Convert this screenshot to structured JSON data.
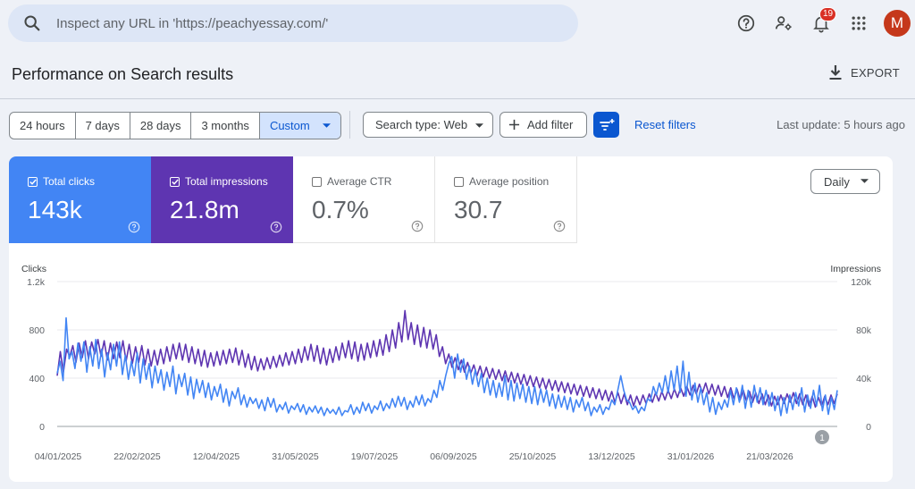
{
  "search": {
    "placeholder": "Inspect any URL in 'https://peachyessay.com/'"
  },
  "header": {
    "notification_count": "19",
    "avatar_letter": "M",
    "icons": [
      "help-icon",
      "manage-users-icon",
      "notifications-icon",
      "apps-grid-icon"
    ]
  },
  "page": {
    "title": "Performance on Search results",
    "export_label": "EXPORT"
  },
  "filters": {
    "date_ranges": [
      "24 hours",
      "7 days",
      "28 days",
      "3 months",
      "Custom"
    ],
    "active_date_range": "Custom",
    "search_type": "Search type: Web",
    "add_filter": "Add filter",
    "reset": "Reset filters",
    "last_update": "Last update: 5 hours ago"
  },
  "metrics": [
    {
      "label": "Total clicks",
      "value": "143k",
      "checked": true,
      "color": "#4285f4"
    },
    {
      "label": "Total impressions",
      "value": "21.8m",
      "checked": true,
      "color": "#5e35b1"
    },
    {
      "label": "Average CTR",
      "value": "0.7%",
      "checked": false
    },
    {
      "label": "Average position",
      "value": "30.7",
      "checked": false
    }
  ],
  "granularity": "Daily",
  "chart_data": {
    "type": "line",
    "left_axis_title": "Clicks",
    "right_axis_title": "Impressions",
    "left_ticks": [
      "0",
      "400",
      "800",
      "1.2k"
    ],
    "right_ticks": [
      "0",
      "40k",
      "80k",
      "120k"
    ],
    "ylim_left": [
      0,
      1200
    ],
    "ylim_right": [
      0,
      120000
    ],
    "x_labels": [
      "04/01/2025",
      "22/02/2025",
      "12/04/2025",
      "31/05/2025",
      "19/07/2025",
      "06/09/2025",
      "25/10/2025",
      "13/12/2025",
      "31/01/2026",
      "21/03/2026"
    ],
    "annotation_marker": "1",
    "grid": true,
    "series": [
      {
        "name": "Clicks",
        "axis": "left",
        "color": "#4285f4",
        "values": [
          440,
          540,
          380,
          900,
          560,
          620,
          480,
          690,
          540,
          700,
          450,
          660,
          500,
          720,
          480,
          640,
          410,
          610,
          470,
          680,
          500,
          700,
          430,
          590,
          390,
          540,
          420,
          610,
          360,
          560,
          390,
          520,
          320,
          500,
          360,
          470,
          300,
          450,
          330,
          500,
          270,
          430,
          330,
          440,
          260,
          410,
          230,
          390,
          280,
          380,
          240,
          360,
          220,
          330,
          250,
          350,
          200,
          310,
          170,
          290,
          230,
          320,
          180,
          260,
          160,
          240,
          190,
          230,
          150,
          220,
          130,
          240,
          160,
          230,
          120,
          180,
          140,
          200,
          110,
          170,
          140,
          190,
          120,
          180,
          100,
          160,
          120,
          170,
          110,
          160,
          90,
          150,
          110,
          140,
          100,
          160,
          90,
          130,
          120,
          180,
          100,
          160,
          110,
          200,
          130,
          190,
          110,
          170,
          140,
          210,
          130,
          190,
          150,
          230,
          160,
          250,
          170,
          240,
          140,
          210,
          160,
          250,
          180,
          260,
          170,
          230,
          200,
          300,
          240,
          380,
          300,
          420,
          520,
          580,
          400,
          600,
          450,
          560,
          390,
          500,
          350,
          470,
          330,
          440,
          280,
          400,
          260,
          380,
          240,
          360,
          250,
          420,
          220,
          380,
          210,
          360,
          230,
          350,
          200,
          330,
          190,
          330,
          180,
          310,
          200,
          300,
          170,
          270,
          150,
          260,
          160,
          250,
          140,
          240,
          120,
          220,
          160,
          240,
          130,
          200,
          90,
          160,
          120,
          180,
          100,
          160,
          140,
          220,
          180,
          300,
          420,
          300,
          220,
          200,
          140,
          170,
          110,
          160,
          130,
          230,
          210,
          330,
          260,
          360,
          280,
          420,
          280,
          460,
          300,
          500,
          280,
          540,
          250,
          450,
          220,
          360,
          200,
          320,
          180,
          280,
          120,
          240,
          100,
          200,
          140,
          220,
          160,
          300,
          180,
          320,
          200,
          340,
          150,
          300,
          160,
          340,
          200,
          320,
          180,
          300,
          170,
          280,
          130,
          250,
          90,
          240,
          110,
          260,
          140,
          280,
          170,
          320,
          120,
          260,
          150,
          300,
          170,
          340,
          130,
          260,
          100,
          240,
          140,
          300
        ]
      },
      {
        "name": "Impressions",
        "axis": "right",
        "color": "#5e35b1",
        "values": [
          42000,
          62000,
          45000,
          64000,
          58000,
          67000,
          53000,
          69000,
          57000,
          71000,
          56000,
          70000,
          60000,
          72000,
          58000,
          71000,
          55000,
          69000,
          56000,
          70000,
          57000,
          71000,
          54000,
          68000,
          52000,
          66000,
          53000,
          67000,
          51000,
          64000,
          50000,
          63000,
          51000,
          64000,
          52000,
          66000,
          54000,
          68000,
          56000,
          69000,
          55000,
          68000,
          53000,
          66000,
          52000,
          64000,
          50000,
          63000,
          49000,
          61000,
          50000,
          62000,
          51000,
          63000,
          52000,
          64000,
          53000,
          65000,
          51000,
          63000,
          49000,
          60000,
          47000,
          58000,
          46000,
          56000,
          47000,
          57000,
          48000,
          58000,
          49000,
          59000,
          50000,
          61000,
          51000,
          62000,
          52000,
          64000,
          53000,
          66000,
          55000,
          68000,
          54000,
          67000,
          52000,
          65000,
          51000,
          64000,
          53000,
          66000,
          55000,
          69000,
          57000,
          71000,
          56000,
          70000,
          54000,
          68000,
          55000,
          69000,
          57000,
          71000,
          58000,
          72000,
          59000,
          76000,
          62000,
          80000,
          65000,
          86000,
          70000,
          96000,
          72000,
          86000,
          68000,
          84000,
          66000,
          82000,
          65000,
          80000,
          64000,
          76000,
          58000,
          66000,
          52000,
          60000,
          49000,
          57000,
          47000,
          55000,
          45000,
          53000,
          44000,
          51000,
          42000,
          50000,
          41000,
          49000,
          40000,
          48000,
          39000,
          47000,
          38000,
          46000,
          37000,
          45000,
          36000,
          44000,
          35000,
          43000,
          34000,
          42000,
          33000,
          41000,
          32000,
          40000,
          31000,
          39000,
          30000,
          38000,
          29000,
          37000,
          28000,
          36000,
          27000,
          35000,
          26000,
          34000,
          25000,
          33000,
          24000,
          32000,
          23000,
          31000,
          22000,
          30000,
          21000,
          29000,
          20000,
          28000,
          19000,
          27000,
          18000,
          26000,
          17000,
          25000,
          18000,
          26000,
          19000,
          27000,
          20000,
          28000,
          21000,
          29000,
          22000,
          30000,
          23000,
          31000,
          24000,
          32000,
          25000,
          33000,
          26000,
          34000,
          27000,
          35000,
          28000,
          36000,
          27000,
          35000,
          26000,
          34000,
          25000,
          33000,
          24000,
          32000,
          23000,
          31000,
          22000,
          30000,
          21000,
          29000,
          20000,
          28000,
          19000,
          27000,
          18000,
          26000,
          17000,
          25000,
          18000,
          26000,
          19000,
          27000,
          20000,
          28000,
          19000,
          27000,
          18000,
          26000,
          17000,
          25000,
          16000,
          24000,
          17000,
          25000,
          18000,
          26000,
          19000,
          27000
        ]
      }
    ]
  }
}
